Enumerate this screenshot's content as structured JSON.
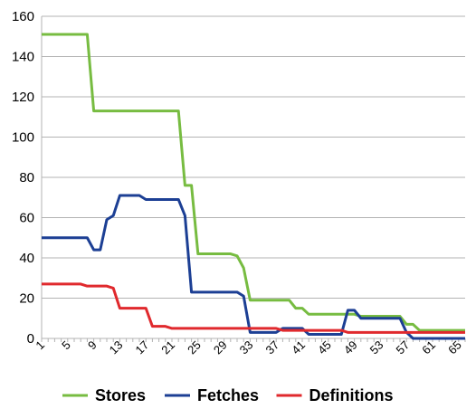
{
  "chart_data": {
    "type": "line",
    "title": "",
    "xlabel": "",
    "ylabel": "",
    "ylim": [
      0,
      160
    ],
    "yticks": [
      0,
      20,
      40,
      60,
      80,
      100,
      120,
      140,
      160
    ],
    "xlim": [
      1,
      66
    ],
    "xticks": [
      1,
      5,
      9,
      13,
      17,
      21,
      25,
      29,
      33,
      37,
      41,
      45,
      49,
      53,
      57,
      61,
      65
    ],
    "grid": "horizontal",
    "legend": "bottom",
    "series": [
      {
        "name": "Stores",
        "color": "#77bc41",
        "points": [
          [
            1,
            151
          ],
          [
            8,
            151
          ],
          [
            9,
            113
          ],
          [
            22,
            113
          ],
          [
            23,
            76
          ],
          [
            24,
            76
          ],
          [
            25,
            42
          ],
          [
            30,
            42
          ],
          [
            31,
            41
          ],
          [
            32,
            35
          ],
          [
            33,
            19
          ],
          [
            39,
            19
          ],
          [
            40,
            15
          ],
          [
            41,
            15
          ],
          [
            42,
            12
          ],
          [
            49,
            12
          ],
          [
            50,
            11
          ],
          [
            56,
            11
          ],
          [
            57,
            7
          ],
          [
            58,
            7
          ],
          [
            59,
            4
          ],
          [
            66,
            4
          ]
        ]
      },
      {
        "name": "Fetches",
        "color": "#1c3f94",
        "points": [
          [
            1,
            50
          ],
          [
            8,
            50
          ],
          [
            9,
            44
          ],
          [
            10,
            44
          ],
          [
            11,
            59
          ],
          [
            12,
            61
          ],
          [
            13,
            71
          ],
          [
            16,
            71
          ],
          [
            17,
            69
          ],
          [
            22,
            69
          ],
          [
            23,
            61
          ],
          [
            24,
            23
          ],
          [
            31,
            23
          ],
          [
            32,
            21
          ],
          [
            33,
            3
          ],
          [
            37,
            3
          ],
          [
            38,
            5
          ],
          [
            41,
            5
          ],
          [
            42,
            2
          ],
          [
            47,
            2
          ],
          [
            48,
            14
          ],
          [
            49,
            14
          ],
          [
            50,
            10
          ],
          [
            56,
            10
          ],
          [
            57,
            3
          ],
          [
            58,
            0
          ],
          [
            66,
            0
          ]
        ]
      },
      {
        "name": "Definitions",
        "color": "#e0292d",
        "points": [
          [
            1,
            27
          ],
          [
            7,
            27
          ],
          [
            8,
            26
          ],
          [
            11,
            26
          ],
          [
            12,
            25
          ],
          [
            13,
            15
          ],
          [
            17,
            15
          ],
          [
            18,
            6
          ],
          [
            20,
            6
          ],
          [
            21,
            5
          ],
          [
            37,
            5
          ],
          [
            38,
            4
          ],
          [
            47,
            4
          ],
          [
            48,
            3
          ],
          [
            66,
            3
          ]
        ]
      }
    ]
  }
}
